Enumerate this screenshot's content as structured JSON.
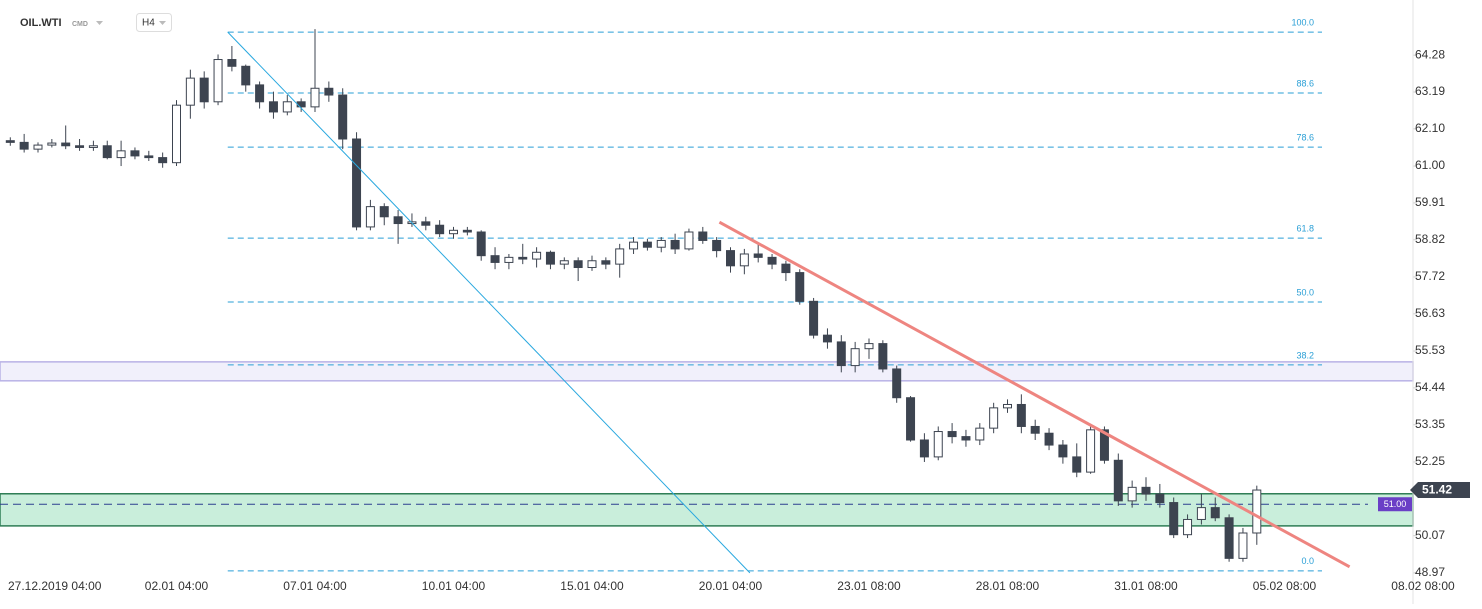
{
  "header": {
    "symbol": "OIL.WTI",
    "market": "CMD",
    "interval": "H4"
  },
  "chart_data": {
    "type": "candlestick",
    "categories": [
      null,
      null,
      "27.12.2019 04:00",
      null,
      null,
      null,
      null,
      null,
      null,
      null,
      null,
      null,
      "02.01 04:00",
      null,
      null,
      null,
      null,
      null,
      null,
      null,
      null,
      null,
      "07.01 04:00",
      null,
      null,
      null,
      null,
      null,
      null,
      null,
      null,
      null,
      "10.01 04:00",
      null,
      null,
      null,
      null,
      null,
      null,
      null,
      null,
      null,
      "15.01 04:00",
      null,
      null,
      null,
      null,
      null,
      null,
      null,
      null,
      null,
      "20.01 04:00",
      null,
      null,
      null,
      null,
      null,
      null,
      null,
      null,
      null,
      "23.01 08:00",
      null,
      null,
      null,
      null,
      null,
      null,
      null,
      null,
      null,
      "28.01 08:00",
      null,
      null,
      null,
      null,
      null,
      null,
      null,
      null,
      null,
      "31.01 08:00",
      null,
      null,
      null,
      null,
      null,
      null,
      null,
      null,
      null,
      "05.02 08:00",
      null,
      null,
      null,
      null,
      null,
      null,
      null,
      null,
      null,
      "08.02 08:00"
    ],
    "open": [
      61.75,
      61.7,
      61.5,
      61.62,
      61.68,
      61.6,
      61.55,
      61.6,
      61.25,
      61.45,
      61.3,
      61.25,
      61.1,
      62.8,
      63.6,
      62.9,
      64.15,
      63.95,
      63.4,
      62.9,
      62.6,
      62.9,
      62.75,
      63.3,
      63.1,
      61.8,
      59.2,
      59.8,
      59.5,
      59.3,
      59.35,
      59.25,
      59.0,
      59.1,
      59.05,
      58.35,
      58.15,
      58.3,
      58.25,
      58.45,
      58.1,
      58.2,
      58.0,
      58.2,
      58.1,
      58.55,
      58.75,
      58.6,
      58.8,
      58.55,
      59.05,
      58.8,
      58.5,
      58.05,
      58.4,
      58.3,
      58.1,
      57.85,
      57.0,
      56.0,
      55.8,
      55.1,
      55.6,
      55.75,
      55.0,
      54.15,
      52.9,
      52.4,
      53.15,
      53.0,
      52.9,
      53.25,
      53.85,
      53.95,
      53.3,
      53.1,
      52.75,
      52.4,
      51.95,
      53.2,
      52.3,
      51.1,
      51.5,
      51.3,
      51.05,
      50.1,
      50.55,
      50.9,
      50.6,
      49.4,
      50.15,
      null,
      null,
      null,
      null,
      null,
      null,
      null,
      null,
      null,
      null,
      null,
      null
    ],
    "high": [
      61.85,
      61.95,
      61.7,
      61.8,
      62.2,
      61.8,
      61.75,
      61.75,
      61.75,
      61.55,
      61.45,
      61.4,
      62.95,
      63.85,
      63.8,
      64.3,
      64.55,
      64.0,
      63.5,
      63.2,
      63.1,
      63.0,
      65.05,
      63.5,
      63.3,
      62.0,
      60.0,
      59.9,
      59.7,
      59.6,
      59.5,
      59.4,
      59.2,
      59.2,
      59.1,
      58.6,
      58.4,
      58.7,
      58.6,
      58.5,
      58.3,
      58.3,
      58.35,
      58.3,
      58.7,
      58.9,
      58.85,
      58.9,
      59.0,
      59.15,
      59.2,
      58.9,
      58.6,
      58.55,
      58.7,
      58.4,
      58.2,
      57.95,
      57.1,
      56.2,
      56.0,
      55.8,
      55.9,
      55.85,
      55.1,
      54.2,
      53.1,
      53.3,
      53.4,
      53.2,
      53.4,
      54.0,
      54.1,
      54.25,
      53.5,
      53.25,
      52.9,
      52.8,
      53.35,
      53.3,
      52.5,
      51.7,
      51.8,
      51.6,
      51.2,
      50.7,
      51.3,
      51.2,
      50.7,
      50.3,
      51.55,
      null,
      null,
      null,
      null,
      null,
      null,
      null,
      null,
      null,
      null,
      null,
      null
    ],
    "low": [
      61.6,
      61.4,
      61.4,
      61.55,
      61.5,
      61.45,
      61.45,
      61.2,
      61.0,
      61.2,
      61.15,
      60.95,
      61.0,
      62.4,
      62.7,
      62.8,
      63.8,
      63.2,
      62.7,
      62.4,
      62.5,
      62.6,
      62.6,
      62.9,
      61.5,
      59.1,
      59.1,
      59.25,
      58.7,
      59.2,
      59.1,
      58.9,
      58.85,
      58.95,
      58.2,
      57.95,
      57.95,
      58.1,
      58.0,
      57.95,
      57.95,
      57.6,
      57.9,
      57.95,
      57.7,
      58.4,
      58.5,
      58.45,
      58.4,
      58.5,
      58.7,
      58.3,
      57.85,
      57.8,
      58.15,
      57.95,
      57.6,
      56.9,
      55.9,
      55.6,
      54.9,
      54.9,
      55.3,
      54.9,
      54.0,
      52.85,
      52.25,
      52.3,
      52.8,
      52.7,
      52.75,
      53.1,
      53.7,
      53.1,
      52.9,
      52.6,
      52.2,
      51.8,
      51.9,
      52.2,
      50.95,
      50.9,
      51.1,
      50.9,
      50.0,
      50.0,
      50.4,
      50.5,
      49.3,
      49.3,
      49.8,
      null,
      null,
      null,
      null,
      null,
      null,
      null,
      null,
      null,
      null,
      null,
      null
    ],
    "close": [
      61.7,
      61.5,
      61.62,
      61.68,
      61.6,
      61.55,
      61.6,
      61.25,
      61.45,
      61.3,
      61.25,
      61.1,
      62.8,
      63.6,
      62.9,
      64.15,
      63.95,
      63.4,
      62.9,
      62.6,
      62.9,
      62.75,
      63.3,
      63.1,
      61.8,
      59.2,
      59.8,
      59.5,
      59.3,
      59.35,
      59.25,
      59.0,
      59.1,
      59.05,
      58.35,
      58.15,
      58.3,
      58.25,
      58.45,
      58.1,
      58.2,
      58.0,
      58.2,
      58.1,
      58.55,
      58.75,
      58.6,
      58.8,
      58.55,
      59.05,
      58.8,
      58.5,
      58.05,
      58.4,
      58.3,
      58.1,
      57.85,
      57.0,
      56.0,
      55.8,
      55.1,
      55.6,
      55.75,
      55.0,
      54.15,
      52.9,
      52.4,
      53.15,
      53.0,
      52.9,
      53.25,
      53.85,
      53.95,
      53.3,
      53.1,
      52.75,
      52.4,
      51.95,
      53.2,
      52.3,
      51.1,
      51.5,
      51.3,
      51.05,
      50.1,
      50.55,
      50.9,
      50.6,
      49.4,
      50.15,
      51.42,
      null,
      null,
      null,
      null,
      null,
      null,
      null,
      null,
      null,
      null,
      null,
      null
    ],
    "up_color": "#ffffff",
    "down_color": "#3d4450",
    "outline_color": "#3d4450",
    "ylim": [
      48.76,
      65.91
    ],
    "yticks": [
      64.28,
      63.19,
      {
        "value": 62.1,
        "label": "62.10"
      },
      {
        "value": 61.0,
        "label": "61.00"
      },
      59.91,
      58.82,
      57.72,
      56.63,
      55.53,
      54.44,
      53.35,
      52.25,
      50.07,
      48.97
    ],
    "fib_levels": [
      {
        "label": "100.0",
        "price": 64.96
      },
      {
        "label": "88.6",
        "price": 63.16
      },
      {
        "label": "78.6",
        "price": 61.56
      },
      {
        "label": "61.8",
        "price": 58.87
      },
      {
        "label": "50.0",
        "price": 56.98
      },
      {
        "label": "38.2",
        "price": 55.12
      },
      {
        "label": "0.0",
        "price": 49.03
      }
    ],
    "fib_color": "#2a9fd6",
    "zones": [
      {
        "low": 54.65,
        "high": 55.21,
        "color": "#f1f0fb",
        "border": "#b9b2e6"
      },
      {
        "low": 50.36,
        "high": 51.31,
        "color": "#c9eedb",
        "border": "#2e7d55"
      }
    ],
    "trendlines": [
      {
        "color": "#29a8df",
        "width": 1,
        "start": {
          "index": 15.7,
          "price": 64.96
        },
        "end": {
          "index": 53.4,
          "price": 48.97
        }
      },
      {
        "color": "#ee8580",
        "width": 3,
        "start": {
          "index": 51.2,
          "price": 59.34
        },
        "end": {
          "index": 96.7,
          "price": 49.15
        }
      }
    ],
    "level": {
      "price": 51.0,
      "label": "51.00",
      "color": "#6a3fc6"
    },
    "last_price": {
      "price": 51.42,
      "label": "51.42",
      "color": "#3d4450"
    }
  }
}
